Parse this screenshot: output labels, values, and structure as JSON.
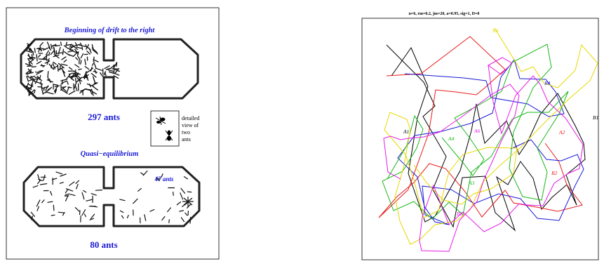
{
  "left_panel": {
    "top_title": "Beginning of drift to the right",
    "top_count": "297 ants",
    "detail_caption": [
      "detailed",
      "view of",
      "two",
      "ants"
    ],
    "bottom_title": "Quasi−equilibrium",
    "bottom_right_count": "47 ants",
    "bottom_count": "80 ants",
    "colors": {
      "text_blue": "#1a1ad6",
      "outline": "#222222"
    }
  },
  "right_panel": {
    "title": "n=6, rm=0.2, jm=20, a=0.95, sig=1, D=0",
    "labels": [
      {
        "text": "B6",
        "color": "#e6d800"
      },
      {
        "text": "B4",
        "color": "#1a1ad6"
      },
      {
        "text": "B1",
        "color": "#000000"
      },
      {
        "text": "A2",
        "color": "#e61a1a"
      },
      {
        "text": "A6",
        "color": "#e61ae6"
      },
      {
        "text": "A4",
        "color": "#1ab81a"
      },
      {
        "text": "A1",
        "color": "#000000"
      },
      {
        "text": "B2",
        "color": "#e61a1a"
      },
      {
        "text": "A3",
        "color": "#1ab81a"
      },
      {
        "text": "B5",
        "color": "#e61ae6"
      }
    ],
    "series_colors": [
      "#000000",
      "#e61a1a",
      "#1a1ad6",
      "#1ab81a",
      "#e6d800",
      "#e61ae6"
    ]
  }
}
